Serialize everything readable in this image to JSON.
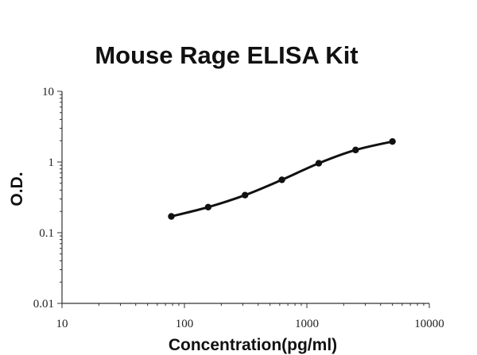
{
  "chart_data": {
    "type": "scatter",
    "title": "Mouse Rage ELISA Kit",
    "xlabel": "Concentration(pg/ml)",
    "ylabel": "O.D.",
    "x_scale": "log",
    "y_scale": "log",
    "xlim": [
      10,
      10000
    ],
    "ylim": [
      0.01,
      10
    ],
    "x_ticks": [
      "10",
      "100",
      "1000",
      "10000"
    ],
    "y_ticks": [
      "10",
      "1",
      "0.1",
      "0.01"
    ],
    "grid": false,
    "series": [
      {
        "x": [
          78.125,
          156.25,
          312.5,
          625,
          1250,
          2500,
          5000
        ],
        "y": [
          0.17,
          0.23,
          0.34,
          0.56,
          0.96,
          1.48,
          1.95
        ],
        "fitted_curve": true,
        "color": "#111111"
      }
    ]
  }
}
